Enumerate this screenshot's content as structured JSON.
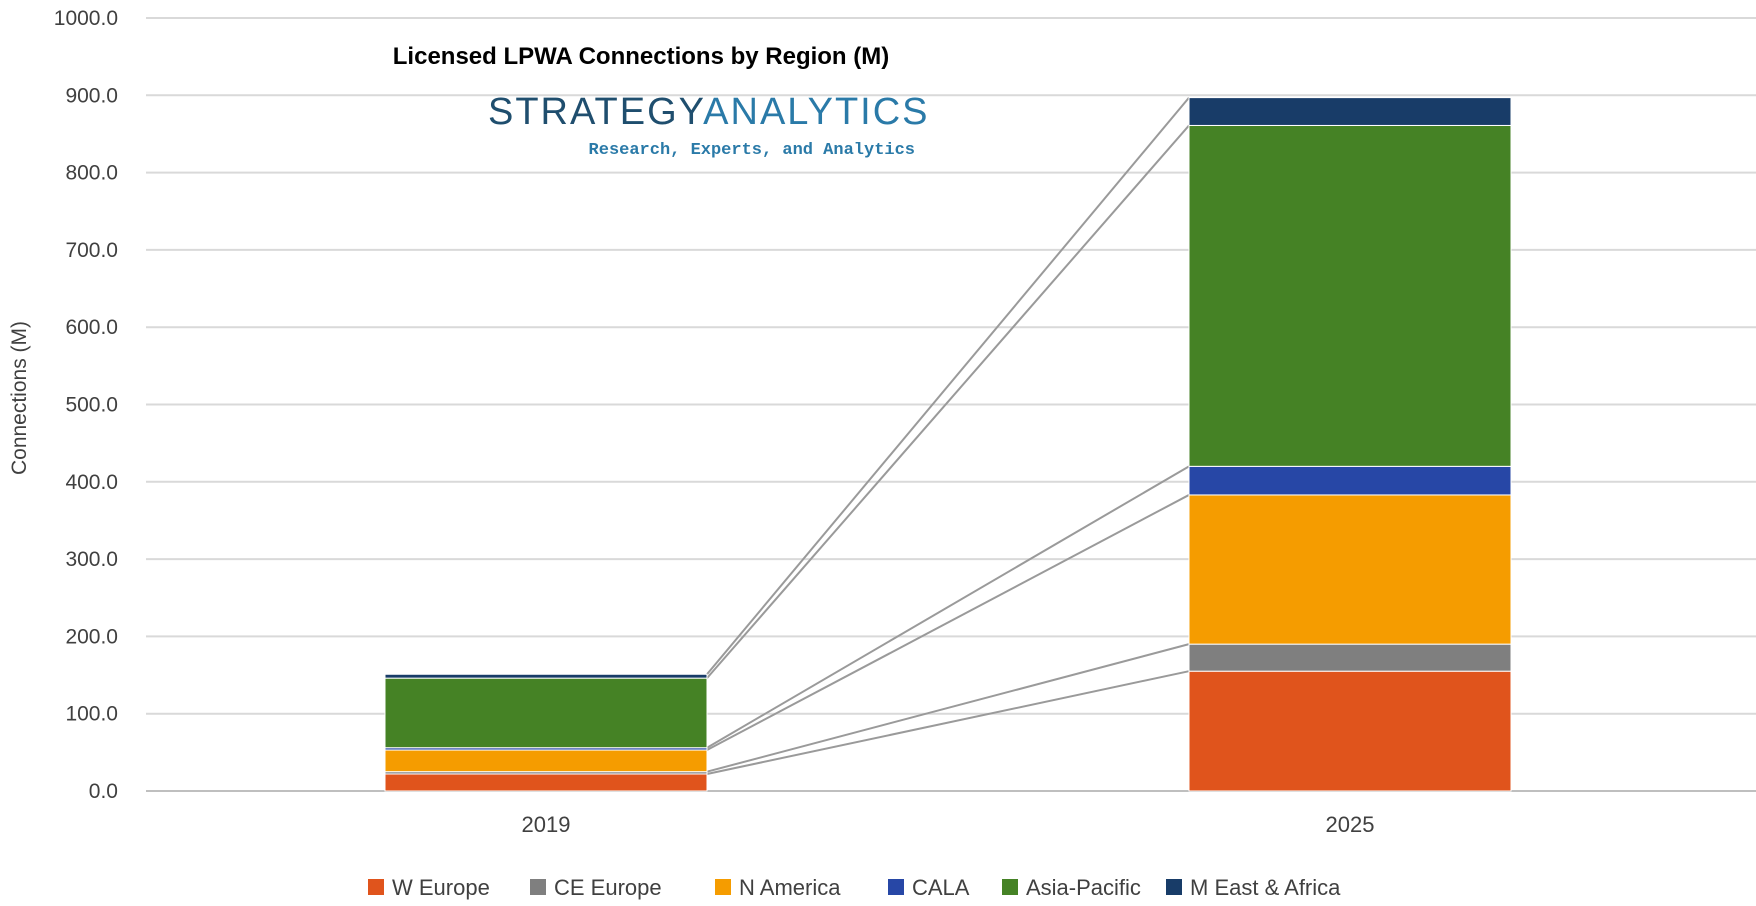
{
  "chart_data": {
    "type": "bar",
    "stacked": true,
    "title": "Licensed LPWA Connections by Region (M)",
    "ylabel": "Connections (M)",
    "xlabel": "",
    "ylim": [
      0,
      1000
    ],
    "yticks": [
      "0.0",
      "100.0",
      "200.0",
      "300.0",
      "400.0",
      "500.0",
      "600.0",
      "700.0",
      "800.0",
      "900.0",
      "1000.0"
    ],
    "categories": [
      "2019",
      "2025"
    ],
    "series": [
      {
        "name": "W Europe",
        "color": "#e0541c",
        "values": [
          22,
          155
        ]
      },
      {
        "name": "CE Europe",
        "color": "#7f7f7f",
        "values": [
          3,
          35
        ]
      },
      {
        "name": "N America",
        "color": "#f59c00",
        "values": [
          28,
          193
        ]
      },
      {
        "name": "CALA",
        "color": "#2747a6",
        "values": [
          3,
          37
        ]
      },
      {
        "name": "Asia-Pacific",
        "color": "#458225",
        "values": [
          90,
          441
        ]
      },
      {
        "name": "M East & Africa",
        "color": "#183c68",
        "values": [
          5,
          36
        ]
      }
    ],
    "grid": true,
    "legend_position": "bottom",
    "connector_lines": true
  },
  "logo": {
    "main_part1": "STRATEGY",
    "main_part2": "ANALYTICS",
    "tagline": "Research, Experts, and Analytics",
    "color_part1": "#1f4e6e",
    "color_part2": "#2a7aa8"
  }
}
